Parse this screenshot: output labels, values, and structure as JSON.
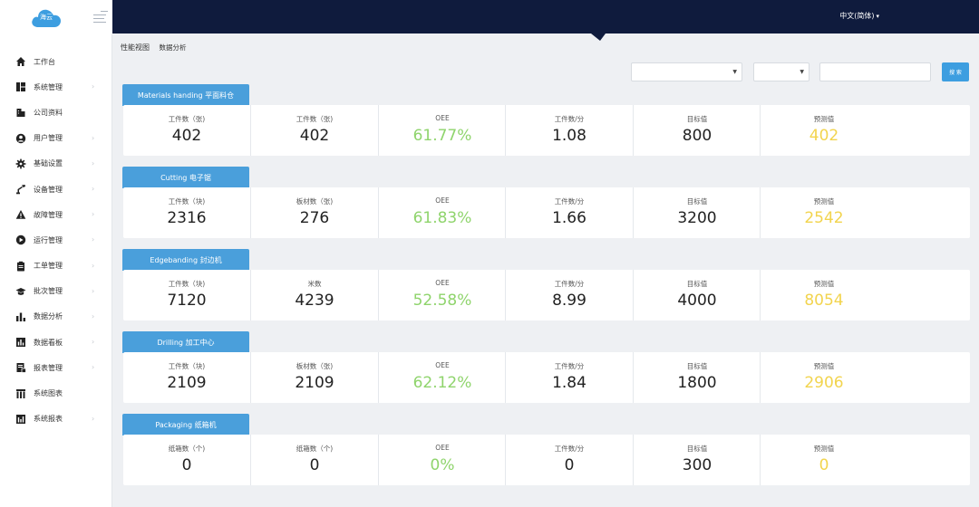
{
  "logo": {
    "text": "海云"
  },
  "topbar": {
    "language": "中文(简体)"
  },
  "breadcrumb": {
    "items": [
      "性能视图",
      "数据分析"
    ]
  },
  "sidebar": {
    "items": [
      {
        "label": "工作台",
        "icon": "home-icon",
        "arrow": false
      },
      {
        "label": "系统管理",
        "icon": "grid-icon",
        "arrow": true
      },
      {
        "label": "公司资料",
        "icon": "building-icon",
        "arrow": false
      },
      {
        "label": "用户管理",
        "icon": "user-icon",
        "arrow": true
      },
      {
        "label": "基础设置",
        "icon": "gear-icon",
        "arrow": true
      },
      {
        "label": "设备管理",
        "icon": "robot-arm-icon",
        "arrow": true
      },
      {
        "label": "故障管理",
        "icon": "warning-icon",
        "arrow": true
      },
      {
        "label": "运行管理",
        "icon": "play-icon",
        "arrow": true
      },
      {
        "label": "工单管理",
        "icon": "clipboard-icon",
        "arrow": true
      },
      {
        "label": "批次管理",
        "icon": "graduation-icon",
        "arrow": true
      },
      {
        "label": "数据分析",
        "icon": "bar-chart-icon",
        "arrow": true
      },
      {
        "label": "数据看板",
        "icon": "dashboard-icon",
        "arrow": true
      },
      {
        "label": "报表管理",
        "icon": "report-icon",
        "arrow": true
      },
      {
        "label": "系统图表",
        "icon": "columns-icon",
        "arrow": false
      },
      {
        "label": "系统报表",
        "icon": "chart-box-icon",
        "arrow": true
      }
    ]
  },
  "filters": {
    "search_button": "搜 索"
  },
  "sections": [
    {
      "title": "Materials handing 平面料仓",
      "metrics": [
        {
          "label": "工件数（张)",
          "value": "402"
        },
        {
          "label": "工件数（张)",
          "value": "402"
        },
        {
          "label": "OEE",
          "value": "61.77%"
        },
        {
          "label": "工件数/分",
          "value": "1.08"
        },
        {
          "label": "目标值",
          "value": "800"
        },
        {
          "label": "预测值",
          "value": "402"
        }
      ]
    },
    {
      "title": "Cutting 电子锯",
      "metrics": [
        {
          "label": "工件数（块)",
          "value": "2316"
        },
        {
          "label": "板材数（张)",
          "value": "276"
        },
        {
          "label": "OEE",
          "value": "61.83%"
        },
        {
          "label": "工件数/分",
          "value": "1.66"
        },
        {
          "label": "目标值",
          "value": "3200"
        },
        {
          "label": "预测值",
          "value": "2542"
        }
      ]
    },
    {
      "title": "Edgebanding 封边机",
      "metrics": [
        {
          "label": "工件数（块)",
          "value": "7120"
        },
        {
          "label": "米数",
          "value": "4239"
        },
        {
          "label": "OEE",
          "value": "52.58%"
        },
        {
          "label": "工件数/分",
          "value": "8.99"
        },
        {
          "label": "目标值",
          "value": "4000"
        },
        {
          "label": "预测值",
          "value": "8054"
        }
      ]
    },
    {
      "title": "Drilling 加工中心",
      "metrics": [
        {
          "label": "工件数（块)",
          "value": "2109"
        },
        {
          "label": "板材数（张)",
          "value": "2109"
        },
        {
          "label": "OEE",
          "value": "62.12%"
        },
        {
          "label": "工件数/分",
          "value": "1.84"
        },
        {
          "label": "目标值",
          "value": "1800"
        },
        {
          "label": "预测值",
          "value": "2906"
        }
      ]
    },
    {
      "title": "Packaging 纸箱机",
      "metrics": [
        {
          "label": "纸箱数（个)",
          "value": "0"
        },
        {
          "label": "纸箱数（个)",
          "value": "0"
        },
        {
          "label": "OEE",
          "value": "0%"
        },
        {
          "label": "工件数/分",
          "value": "0"
        },
        {
          "label": "目标值",
          "value": "300"
        },
        {
          "label": "预测值",
          "value": "0"
        }
      ]
    }
  ],
  "colors": {
    "topbar": "#0f1b3d",
    "accent": "#4a9fdb",
    "oee": "#8fd46c",
    "forecast": "#f2d44e"
  }
}
